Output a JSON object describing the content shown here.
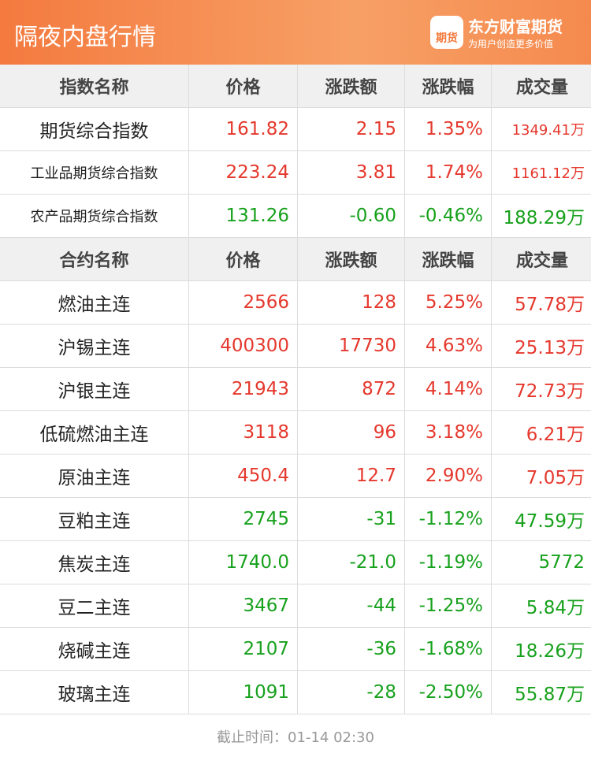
{
  "header": {
    "title": "隔夜内盘行情",
    "logo_text": "期货",
    "brand_name": "东方财富期货",
    "brand_slogan": "为用户创造更多价值"
  },
  "index_table": {
    "columns": [
      "指数名称",
      "价格",
      "涨跌额",
      "涨跌幅",
      "成交量"
    ],
    "rows": [
      {
        "cells": [
          "期货综合指数",
          "161.82",
          "2.15",
          "1.35%",
          "1349.41万"
        ],
        "color": "#e5382d"
      },
      {
        "cells": [
          "工业品期货综合指数",
          "223.24",
          "3.81",
          "1.74%",
          "1161.12万"
        ],
        "color": "#e5382d"
      },
      {
        "cells": [
          "农产品期货综合指数",
          "131.26",
          "-0.60",
          "-0.46%",
          "188.29万"
        ],
        "color": "#17a11c"
      }
    ]
  },
  "contract_table": {
    "columns": [
      "合约名称",
      "价格",
      "涨跌额",
      "涨跌幅",
      "成交量"
    ],
    "rows": [
      {
        "cells": [
          "燃油主连",
          "2566",
          "128",
          "5.25%",
          "57.78万"
        ],
        "color": "#e5382d"
      },
      {
        "cells": [
          "沪锡主连",
          "400300",
          "17730",
          "4.63%",
          "25.13万"
        ],
        "color": "#e5382d"
      },
      {
        "cells": [
          "沪银主连",
          "21943",
          "872",
          "4.14%",
          "72.73万"
        ],
        "color": "#e5382d"
      },
      {
        "cells": [
          "低硫燃油主连",
          "3118",
          "96",
          "3.18%",
          "6.21万"
        ],
        "color": "#e5382d"
      },
      {
        "cells": [
          "原油主连",
          "450.4",
          "12.7",
          "2.90%",
          "7.05万"
        ],
        "color": "#e5382d"
      },
      {
        "cells": [
          "豆粕主连",
          "2745",
          "-31",
          "-1.12%",
          "47.59万"
        ],
        "color": "#17a11c"
      },
      {
        "cells": [
          "焦炭主连",
          "1740.0",
          "-21.0",
          "-1.19%",
          "5772"
        ],
        "color": "#17a11c"
      },
      {
        "cells": [
          "豆二主连",
          "3467",
          "-44",
          "-1.25%",
          "5.84万"
        ],
        "color": "#17a11c"
      },
      {
        "cells": [
          "烧碱主连",
          "2107",
          "-36",
          "-1.68%",
          "18.26万"
        ],
        "color": "#17a11c"
      },
      {
        "cells": [
          "玻璃主连",
          "1091",
          "-28",
          "-2.50%",
          "55.87万"
        ],
        "color": "#17a11c"
      }
    ]
  },
  "footer": {
    "text": "截止时间：01-14 02:30"
  }
}
